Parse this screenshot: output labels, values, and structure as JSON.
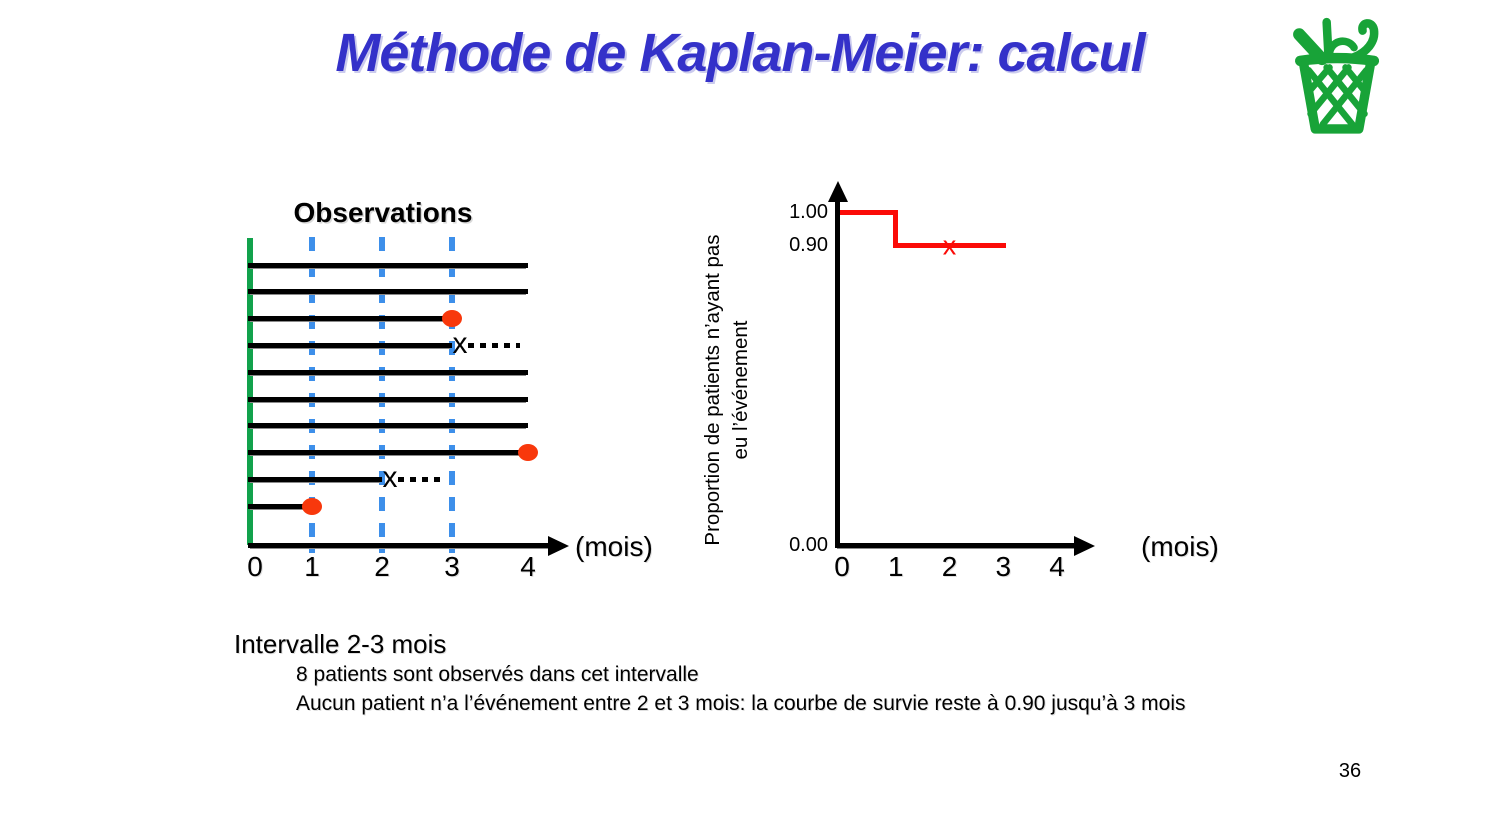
{
  "slide": {
    "title": "Méthode de Kaplan-Meier: calcul",
    "page_number": "36"
  },
  "colors": {
    "title_blue": "#3431c9",
    "survival_curve_red": "#fb0b07",
    "event_dot_red": "#f8380c",
    "interval_dash_blue": "#3d8fea",
    "origin_line_green": "#12a24c",
    "basket_icon_green": "#18a338"
  },
  "icons": {
    "basket": "green-wastebasket-icon"
  },
  "chart_data": [
    {
      "type": "line",
      "subtype": "patient-follow-up-timelines",
      "title": "Observations",
      "xlabel": "(mois)",
      "xlim": [
        0,
        4
      ],
      "x_ticks": [
        "0",
        "1",
        "2",
        "3",
        "4"
      ],
      "interval_lines_x": [
        1,
        2,
        3
      ],
      "patients": [
        {
          "start": 0,
          "end": 4,
          "status": "suivi"
        },
        {
          "start": 0,
          "end": 4,
          "status": "suivi"
        },
        {
          "start": 0,
          "end": 3,
          "status": "événement"
        },
        {
          "start": 0,
          "end": 3,
          "status": "censuré",
          "dotted_to": 3.9
        },
        {
          "start": 0,
          "end": 4,
          "status": "suivi"
        },
        {
          "start": 0,
          "end": 4,
          "status": "suivi"
        },
        {
          "start": 0,
          "end": 4,
          "status": "suivi"
        },
        {
          "start": 0,
          "end": 4,
          "status": "événement"
        },
        {
          "start": 0,
          "end": 2,
          "status": "censuré",
          "dotted_to": 2.85
        },
        {
          "start": 0,
          "end": 1,
          "status": "événement"
        }
      ]
    },
    {
      "type": "line",
      "subtype": "kaplan-meier-step-curve",
      "ylabel": [
        "Proportion de patients n’ayant pas",
        "eu l’événement"
      ],
      "xlabel": "(mois)",
      "xlim": [
        0,
        4
      ],
      "ylim": [
        0,
        1
      ],
      "x_ticks": [
        "0",
        "1",
        "2",
        "3",
        "4"
      ],
      "y_tick_labels": [
        {
          "value": 1.0,
          "label": "1.00"
        },
        {
          "value": 0.9,
          "label": "0.90"
        },
        {
          "value": 0.0,
          "label": "0.00"
        }
      ],
      "step_points": [
        [
          0,
          1.0
        ],
        [
          1,
          1.0
        ],
        [
          1,
          0.9
        ],
        [
          3,
          0.9
        ]
      ],
      "censor_marks": [
        [
          2,
          0.9
        ]
      ]
    }
  ],
  "notes": {
    "heading": "Intervalle 2-3 mois",
    "lines": [
      "8 patients sont observés dans cet intervalle",
      "Aucun patient n’a l’événement entre 2 et 3 mois: la courbe de survie reste à 0.90 jusqu’à 3 mois"
    ]
  }
}
